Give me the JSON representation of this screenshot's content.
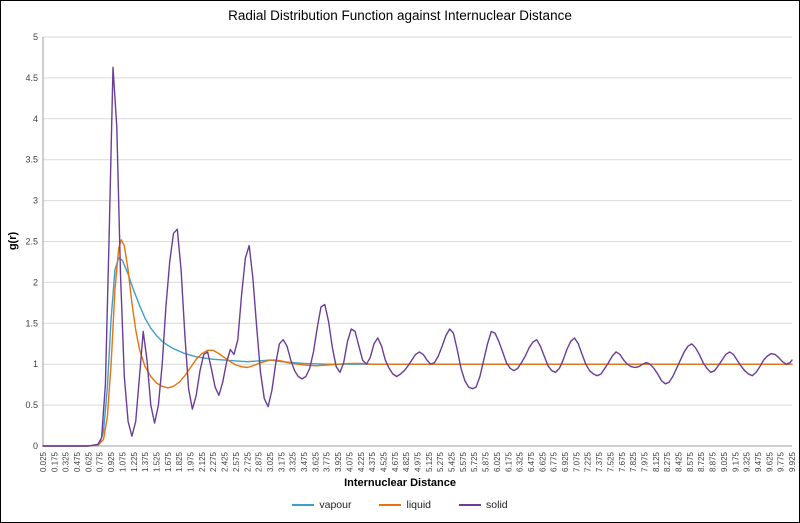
{
  "chart_data": {
    "type": "line",
    "title": "Radial Distribution Function against Internuclear Distance",
    "xlabel": "Internuclear Distance",
    "ylabel": "g(r)",
    "ylim": [
      0,
      5
    ],
    "xlim": [
      0.025,
      9.925
    ],
    "grid": "horizontal",
    "legend_position": "bottom",
    "y_ticks": [
      "0",
      "0.5",
      "1",
      "1.5",
      "2",
      "2.5",
      "3",
      "3.5",
      "4",
      "4.5",
      "5"
    ],
    "x_tick_labels": [
      "0.025",
      "0.175",
      "0.325",
      "0.475",
      "0.625",
      "0.775",
      "0.925",
      "1.075",
      "1.225",
      "1.375",
      "1.525",
      "1.675",
      "1.825",
      "1.975",
      "2.125",
      "2.275",
      "2.425",
      "2.575",
      "2.725",
      "2.875",
      "3.025",
      "3.175",
      "3.325",
      "3.475",
      "3.625",
      "3.775",
      "3.925",
      "4.075",
      "4.225",
      "4.375",
      "4.525",
      "4.675",
      "4.825",
      "4.975",
      "5.125",
      "5.275",
      "5.425",
      "5.575",
      "5.725",
      "5.875",
      "6.025",
      "6.175",
      "6.325",
      "6.475",
      "6.625",
      "6.775",
      "6.925",
      "7.075",
      "7.225",
      "7.375",
      "7.525",
      "7.675",
      "7.825",
      "7.975",
      "8.125",
      "8.275",
      "8.425",
      "8.575",
      "8.725",
      "8.875",
      "9.025",
      "9.175",
      "9.325",
      "9.475",
      "9.625",
      "9.775",
      "9.925"
    ],
    "series": [
      {
        "name": "vapour",
        "color": "#3F9FCB",
        "points": [
          [
            0.025,
            0
          ],
          [
            0.55,
            0
          ],
          [
            0.7,
            0.005
          ],
          [
            0.775,
            0.03
          ],
          [
            0.825,
            0.18
          ],
          [
            0.875,
            0.7
          ],
          [
            0.925,
            1.55
          ],
          [
            0.975,
            2.15
          ],
          [
            1.025,
            2.3
          ],
          [
            1.075,
            2.27
          ],
          [
            1.15,
            2.1
          ],
          [
            1.225,
            1.9
          ],
          [
            1.3,
            1.72
          ],
          [
            1.375,
            1.56
          ],
          [
            1.45,
            1.44
          ],
          [
            1.525,
            1.35
          ],
          [
            1.6,
            1.28
          ],
          [
            1.675,
            1.23
          ],
          [
            1.75,
            1.19
          ],
          [
            1.825,
            1.16
          ],
          [
            1.9,
            1.13
          ],
          [
            1.975,
            1.11
          ],
          [
            2.05,
            1.09
          ],
          [
            2.125,
            1.08
          ],
          [
            2.275,
            1.06
          ],
          [
            2.425,
            1.05
          ],
          [
            2.575,
            1.04
          ],
          [
            2.725,
            1.03
          ],
          [
            2.875,
            1.04
          ],
          [
            3.025,
            1.05
          ],
          [
            3.175,
            1.03
          ],
          [
            3.325,
            1.02
          ],
          [
            3.475,
            1.01
          ],
          [
            3.775,
            1.0
          ],
          [
            4.225,
            1.0
          ],
          [
            5.025,
            1.0
          ],
          [
            6.025,
            1.0
          ],
          [
            7.025,
            1.0
          ],
          [
            8.025,
            1.0
          ],
          [
            9.025,
            1.0
          ],
          [
            9.925,
            1.0
          ]
        ]
      },
      {
        "name": "liquid",
        "color": "#E8720C",
        "points": [
          [
            0.025,
            0
          ],
          [
            0.6,
            0
          ],
          [
            0.75,
            0.01
          ],
          [
            0.825,
            0.08
          ],
          [
            0.875,
            0.35
          ],
          [
            0.925,
            1.0
          ],
          [
            0.975,
            1.9
          ],
          [
            1.025,
            2.42
          ],
          [
            1.06,
            2.52
          ],
          [
            1.1,
            2.45
          ],
          [
            1.15,
            2.15
          ],
          [
            1.2,
            1.75
          ],
          [
            1.25,
            1.42
          ],
          [
            1.3,
            1.18
          ],
          [
            1.375,
            0.97
          ],
          [
            1.45,
            0.85
          ],
          [
            1.525,
            0.77
          ],
          [
            1.6,
            0.73
          ],
          [
            1.675,
            0.71
          ],
          [
            1.75,
            0.73
          ],
          [
            1.825,
            0.78
          ],
          [
            1.9,
            0.86
          ],
          [
            1.975,
            0.96
          ],
          [
            2.05,
            1.06
          ],
          [
            2.125,
            1.13
          ],
          [
            2.2,
            1.17
          ],
          [
            2.275,
            1.17
          ],
          [
            2.35,
            1.13
          ],
          [
            2.425,
            1.08
          ],
          [
            2.5,
            1.03
          ],
          [
            2.575,
            0.99
          ],
          [
            2.65,
            0.97
          ],
          [
            2.725,
            0.96
          ],
          [
            2.8,
            0.98
          ],
          [
            2.875,
            1.01
          ],
          [
            2.95,
            1.03
          ],
          [
            3.025,
            1.05
          ],
          [
            3.1,
            1.05
          ],
          [
            3.175,
            1.04
          ],
          [
            3.25,
            1.02
          ],
          [
            3.325,
            1.01
          ],
          [
            3.475,
            0.99
          ],
          [
            3.625,
            0.98
          ],
          [
            3.775,
            0.99
          ],
          [
            3.925,
            1.0
          ],
          [
            4.075,
            1.01
          ],
          [
            4.225,
            1.01
          ],
          [
            4.375,
            1.0
          ],
          [
            4.525,
            1.0
          ],
          [
            4.825,
            1.0
          ],
          [
            5.425,
            1.0
          ],
          [
            6.025,
            1.0
          ],
          [
            7.025,
            1.0
          ],
          [
            8.025,
            1.0
          ],
          [
            9.025,
            1.0
          ],
          [
            9.925,
            1.0
          ]
        ]
      },
      {
        "name": "solid",
        "color": "#6A3D9A",
        "points": [
          [
            0.025,
            0
          ],
          [
            0.625,
            0
          ],
          [
            0.75,
            0.02
          ],
          [
            0.8,
            0.1
          ],
          [
            0.85,
            0.75
          ],
          [
            0.9,
            2.6
          ],
          [
            0.95,
            4.63
          ],
          [
            1.0,
            3.9
          ],
          [
            1.05,
            2.1
          ],
          [
            1.1,
            0.85
          ],
          [
            1.15,
            0.3
          ],
          [
            1.2,
            0.12
          ],
          [
            1.25,
            0.3
          ],
          [
            1.3,
            0.85
          ],
          [
            1.35,
            1.4
          ],
          [
            1.4,
            1.05
          ],
          [
            1.45,
            0.5
          ],
          [
            1.5,
            0.28
          ],
          [
            1.55,
            0.5
          ],
          [
            1.6,
            1.0
          ],
          [
            1.65,
            1.7
          ],
          [
            1.7,
            2.25
          ],
          [
            1.75,
            2.6
          ],
          [
            1.8,
            2.65
          ],
          [
            1.85,
            2.15
          ],
          [
            1.9,
            1.35
          ],
          [
            1.95,
            0.7
          ],
          [
            2.0,
            0.45
          ],
          [
            2.05,
            0.62
          ],
          [
            2.1,
            0.92
          ],
          [
            2.15,
            1.12
          ],
          [
            2.2,
            1.15
          ],
          [
            2.25,
            0.95
          ],
          [
            2.3,
            0.72
          ],
          [
            2.35,
            0.62
          ],
          [
            2.4,
            0.78
          ],
          [
            2.45,
            1.02
          ],
          [
            2.5,
            1.18
          ],
          [
            2.55,
            1.12
          ],
          [
            2.6,
            1.3
          ],
          [
            2.65,
            1.85
          ],
          [
            2.7,
            2.3
          ],
          [
            2.75,
            2.45
          ],
          [
            2.8,
            2.05
          ],
          [
            2.85,
            1.45
          ],
          [
            2.9,
            0.9
          ],
          [
            2.95,
            0.58
          ],
          [
            3.0,
            0.48
          ],
          [
            3.05,
            0.68
          ],
          [
            3.1,
            1.0
          ],
          [
            3.15,
            1.25
          ],
          [
            3.2,
            1.3
          ],
          [
            3.25,
            1.22
          ],
          [
            3.3,
            1.05
          ],
          [
            3.35,
            0.92
          ],
          [
            3.4,
            0.85
          ],
          [
            3.45,
            0.82
          ],
          [
            3.5,
            0.85
          ],
          [
            3.55,
            0.95
          ],
          [
            3.6,
            1.15
          ],
          [
            3.65,
            1.45
          ],
          [
            3.7,
            1.7
          ],
          [
            3.75,
            1.73
          ],
          [
            3.8,
            1.52
          ],
          [
            3.85,
            1.2
          ],
          [
            3.9,
            0.97
          ],
          [
            3.95,
            0.9
          ],
          [
            4.0,
            1.02
          ],
          [
            4.05,
            1.28
          ],
          [
            4.1,
            1.43
          ],
          [
            4.15,
            1.4
          ],
          [
            4.2,
            1.22
          ],
          [
            4.25,
            1.05
          ],
          [
            4.3,
            1.0
          ],
          [
            4.35,
            1.08
          ],
          [
            4.4,
            1.25
          ],
          [
            4.45,
            1.32
          ],
          [
            4.5,
            1.22
          ],
          [
            4.55,
            1.05
          ],
          [
            4.6,
            0.95
          ],
          [
            4.65,
            0.88
          ],
          [
            4.7,
            0.85
          ],
          [
            4.75,
            0.88
          ],
          [
            4.8,
            0.92
          ],
          [
            4.85,
            0.98
          ],
          [
            4.9,
            1.05
          ],
          [
            4.95,
            1.12
          ],
          [
            5.0,
            1.15
          ],
          [
            5.05,
            1.12
          ],
          [
            5.1,
            1.05
          ],
          [
            5.15,
            1.0
          ],
          [
            5.2,
            1.02
          ],
          [
            5.25,
            1.1
          ],
          [
            5.3,
            1.22
          ],
          [
            5.35,
            1.35
          ],
          [
            5.4,
            1.43
          ],
          [
            5.45,
            1.38
          ],
          [
            5.5,
            1.18
          ],
          [
            5.55,
            0.95
          ],
          [
            5.6,
            0.8
          ],
          [
            5.65,
            0.72
          ],
          [
            5.7,
            0.7
          ],
          [
            5.75,
            0.72
          ],
          [
            5.8,
            0.85
          ],
          [
            5.85,
            1.05
          ],
          [
            5.9,
            1.25
          ],
          [
            5.95,
            1.4
          ],
          [
            6.0,
            1.38
          ],
          [
            6.05,
            1.28
          ],
          [
            6.1,
            1.15
          ],
          [
            6.15,
            1.02
          ],
          [
            6.2,
            0.95
          ],
          [
            6.25,
            0.92
          ],
          [
            6.3,
            0.95
          ],
          [
            6.35,
            1.02
          ],
          [
            6.4,
            1.1
          ],
          [
            6.45,
            1.2
          ],
          [
            6.5,
            1.27
          ],
          [
            6.55,
            1.3
          ],
          [
            6.6,
            1.22
          ],
          [
            6.65,
            1.1
          ],
          [
            6.7,
            0.98
          ],
          [
            6.75,
            0.92
          ],
          [
            6.8,
            0.9
          ],
          [
            6.85,
            0.95
          ],
          [
            6.9,
            1.05
          ],
          [
            6.95,
            1.18
          ],
          [
            7.0,
            1.28
          ],
          [
            7.05,
            1.32
          ],
          [
            7.1,
            1.25
          ],
          [
            7.15,
            1.12
          ],
          [
            7.2,
            1.0
          ],
          [
            7.25,
            0.92
          ],
          [
            7.3,
            0.88
          ],
          [
            7.35,
            0.86
          ],
          [
            7.4,
            0.88
          ],
          [
            7.45,
            0.95
          ],
          [
            7.5,
            1.02
          ],
          [
            7.55,
            1.1
          ],
          [
            7.6,
            1.15
          ],
          [
            7.65,
            1.12
          ],
          [
            7.7,
            1.05
          ],
          [
            7.75,
            1.0
          ],
          [
            7.8,
            0.97
          ],
          [
            7.85,
            0.96
          ],
          [
            7.9,
            0.97
          ],
          [
            7.95,
            1.0
          ],
          [
            8.0,
            1.02
          ],
          [
            8.05,
            1.0
          ],
          [
            8.1,
            0.95
          ],
          [
            8.15,
            0.88
          ],
          [
            8.2,
            0.8
          ],
          [
            8.25,
            0.76
          ],
          [
            8.3,
            0.78
          ],
          [
            8.35,
            0.85
          ],
          [
            8.4,
            0.95
          ],
          [
            8.45,
            1.05
          ],
          [
            8.5,
            1.15
          ],
          [
            8.55,
            1.22
          ],
          [
            8.6,
            1.25
          ],
          [
            8.65,
            1.2
          ],
          [
            8.7,
            1.12
          ],
          [
            8.75,
            1.02
          ],
          [
            8.8,
            0.95
          ],
          [
            8.85,
            0.9
          ],
          [
            8.9,
            0.92
          ],
          [
            8.95,
            0.98
          ],
          [
            9.0,
            1.05
          ],
          [
            9.05,
            1.12
          ],
          [
            9.1,
            1.15
          ],
          [
            9.15,
            1.12
          ],
          [
            9.2,
            1.05
          ],
          [
            9.25,
            0.98
          ],
          [
            9.3,
            0.92
          ],
          [
            9.35,
            0.88
          ],
          [
            9.4,
            0.86
          ],
          [
            9.45,
            0.9
          ],
          [
            9.5,
            0.97
          ],
          [
            9.55,
            1.05
          ],
          [
            9.6,
            1.1
          ],
          [
            9.65,
            1.13
          ],
          [
            9.7,
            1.12
          ],
          [
            9.75,
            1.08
          ],
          [
            9.8,
            1.03
          ],
          [
            9.85,
            1.0
          ],
          [
            9.9,
            1.02
          ],
          [
            9.925,
            1.05
          ]
        ]
      }
    ],
    "colors": {
      "gridline": "#D9D9D9",
      "axis_line": "#9E9E9E",
      "tick_text": "#404040"
    }
  }
}
